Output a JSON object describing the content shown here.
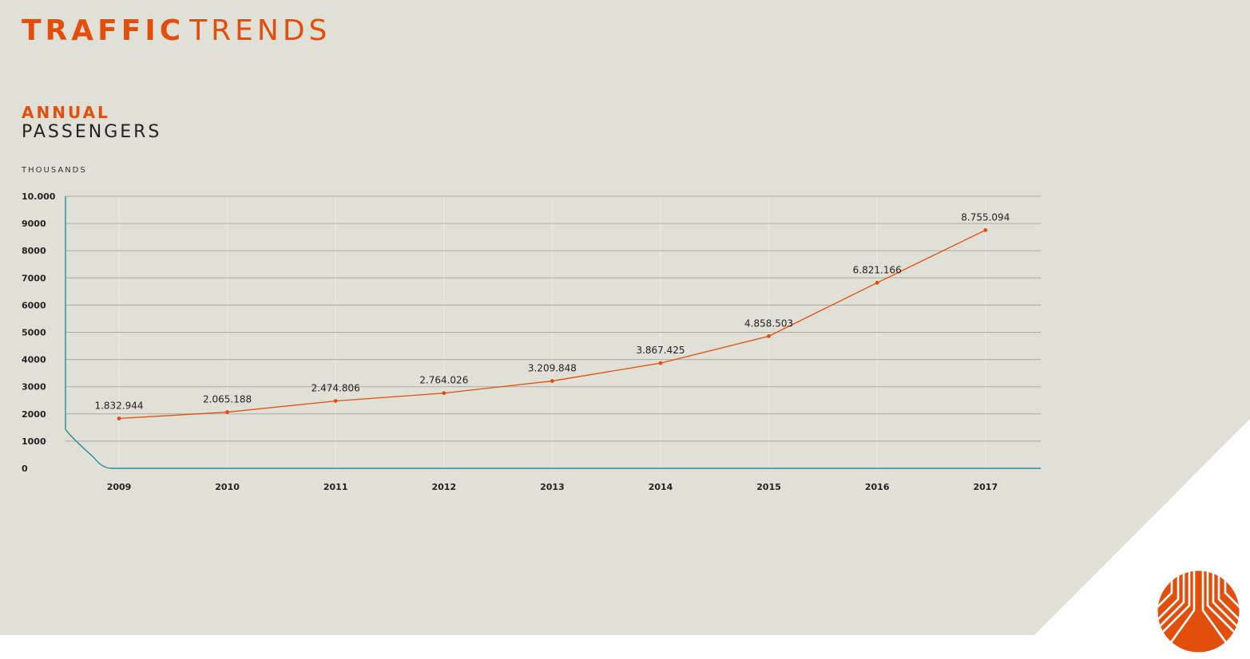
{
  "header": {
    "title_bold": "TRAFFIC",
    "title_light": "TRENDS"
  },
  "subtitle": {
    "line1": "ANNUAL",
    "line2": "PASSENGERS"
  },
  "colors": {
    "background": "#e0e0d6",
    "accent": "#e24e0c",
    "axis": "#2a8a94",
    "grid": "#a9a9a2",
    "text": "#222222"
  },
  "logo": {
    "icon": "airport-logo-icon"
  },
  "chart_data": {
    "type": "line",
    "title": "ANNUAL PASSENGERS",
    "ylabel": "THOUSANDS",
    "xlabel": "",
    "ylim": [
      0,
      10000
    ],
    "yticks": [
      0,
      1000,
      2000,
      3000,
      4000,
      5000,
      6000,
      7000,
      8000,
      9000,
      10000
    ],
    "ytick_labels": [
      "0",
      "1000",
      "2000",
      "3000",
      "4000",
      "5000",
      "6000",
      "7000",
      "8000",
      "9000",
      "10.000"
    ],
    "grid": true,
    "categories": [
      "2009",
      "2010",
      "2011",
      "2012",
      "2013",
      "2014",
      "2015",
      "2016",
      "2017"
    ],
    "values": [
      1832.944,
      2065.188,
      2474.806,
      2764.026,
      3209.848,
      3867.425,
      4858.503,
      6821.166,
      8755.094
    ],
    "data_labels": [
      "1.832.944",
      "2.065.188",
      "2.474.806",
      "2.764.026",
      "3.209.848",
      "3.867.425",
      "4.858.503",
      "6.821.166",
      "8.755.094"
    ]
  }
}
